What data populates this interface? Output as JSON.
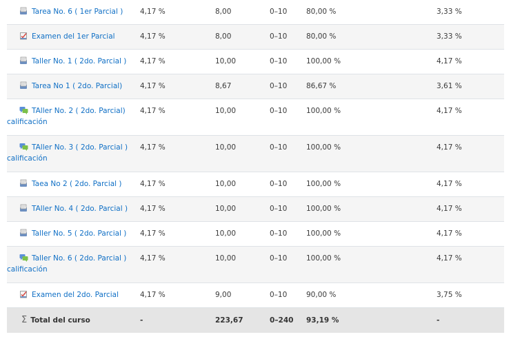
{
  "rows": [
    {
      "icon": "assignment-icon",
      "name": "Tarea No. 6 ( 1er Parcial )",
      "name_cont": "",
      "weight": "4,17 %",
      "grade": "8,00",
      "range": "0–10",
      "percentage": "80,00 %",
      "contribution": "3,33 %"
    },
    {
      "icon": "quiz-icon",
      "name": "Examen del 1er Parcial",
      "name_cont": "",
      "weight": "4,17 %",
      "grade": "8,00",
      "range": "0–10",
      "percentage": "80,00 %",
      "contribution": "3,33 %"
    },
    {
      "icon": "assignment-icon",
      "name": "Taller No. 1 ( 2do. Parcial )",
      "name_cont": "",
      "weight": "4,17 %",
      "grade": "10,00",
      "range": "0–10",
      "percentage": "100,00 %",
      "contribution": "4,17 %"
    },
    {
      "icon": "assignment-icon",
      "name": "Tarea No 1 ( 2do. Parcial)",
      "name_cont": "",
      "weight": "4,17 %",
      "grade": "8,67",
      "range": "0–10",
      "percentage": "86,67 %",
      "contribution": "3,61 %"
    },
    {
      "icon": "forum-icon",
      "name": "TAller No. 2 ( 2do. Parcial)",
      "name_cont": "calificación",
      "weight": "4,17 %",
      "grade": "10,00",
      "range": "0–10",
      "percentage": "100,00 %",
      "contribution": "4,17 %"
    },
    {
      "icon": "forum-icon",
      "name": "TAller No. 3 ( 2do. Parcial )",
      "name_cont": "calificación",
      "weight": "4,17 %",
      "grade": "10,00",
      "range": "0–10",
      "percentage": "100,00 %",
      "contribution": "4,17 %"
    },
    {
      "icon": "assignment-icon",
      "name": "Taea No 2 ( 2do. Parcial )",
      "name_cont": "",
      "weight": "4,17 %",
      "grade": "10,00",
      "range": "0–10",
      "percentage": "100,00 %",
      "contribution": "4,17 %"
    },
    {
      "icon": "assignment-icon",
      "name": "TAller No. 4 ( 2do. Parcial )",
      "name_cont": "",
      "weight": "4,17 %",
      "grade": "10,00",
      "range": "0–10",
      "percentage": "100,00 %",
      "contribution": "4,17 %"
    },
    {
      "icon": "assignment-icon",
      "name": "Taller No. 5 ( 2do. Parcial )",
      "name_cont": "",
      "weight": "4,17 %",
      "grade": "10,00",
      "range": "0–10",
      "percentage": "100,00 %",
      "contribution": "4,17 %"
    },
    {
      "icon": "forum-icon",
      "name": "Taller No. 6 ( 2do. Parcial )",
      "name_cont": "calificación",
      "weight": "4,17 %",
      "grade": "10,00",
      "range": "0–10",
      "percentage": "100,00 %",
      "contribution": "4,17 %"
    },
    {
      "icon": "quiz-icon",
      "name": "Examen del 2do. Parcial",
      "name_cont": "",
      "weight": "4,17 %",
      "grade": "9,00",
      "range": "0–10",
      "percentage": "90,00 %",
      "contribution": "3,75 %"
    }
  ],
  "total": {
    "icon": "sigma-icon",
    "label": "Total del curso",
    "weight": "-",
    "grade": "223,67",
    "range": "0–240",
    "percentage": "93,19 %",
    "contribution": "-"
  },
  "colors": {
    "link": "#0f6fc5",
    "row_alt": "#f5f5f5",
    "total_bg": "#e5e5e5"
  }
}
